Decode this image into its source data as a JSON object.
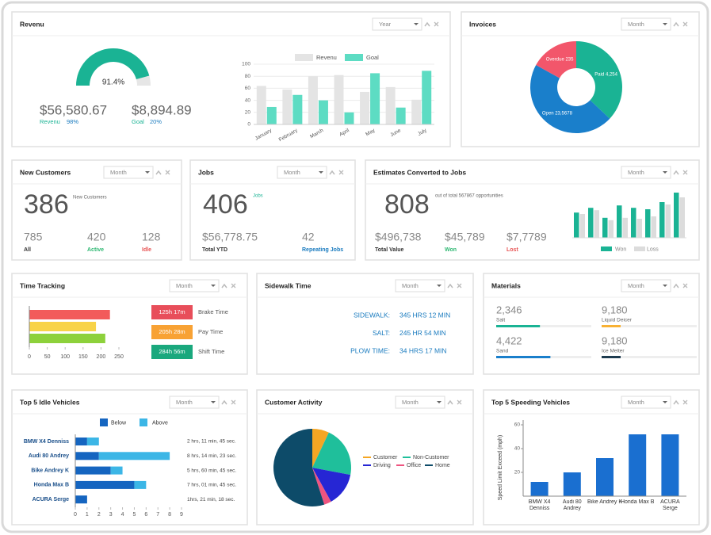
{
  "revenue": {
    "title": "Revenu",
    "period": "Year",
    "gauge": {
      "value": 91.4,
      "value_label": "91.4%",
      "range": [
        0,
        100
      ],
      "color": "#1ab394",
      "track_color": "#e6e6e6"
    },
    "total": "$56,580.67",
    "total_label": "Revenu",
    "total_change": "98%",
    "goal": "$8,894.89",
    "goal_label": "Goal",
    "goal_change": "20%",
    "chart": {
      "type": "bar",
      "categories": [
        "January",
        "February",
        "March",
        "April",
        "May",
        "June",
        "July"
      ],
      "series": [
        {
          "name": "Revenu",
          "color": "#e4e4e4",
          "values": [
            64,
            58,
            80,
            82,
            54,
            62,
            41
          ]
        },
        {
          "name": "Goal",
          "color": "#5ddcc3",
          "values": [
            29,
            49,
            40,
            20,
            85,
            28,
            89
          ]
        }
      ],
      "ylim": [
        0,
        100
      ],
      "yticks": [
        0,
        20,
        40,
        60,
        80,
        100
      ],
      "grid": true
    }
  },
  "invoices": {
    "title": "Invoices",
    "period": "Month",
    "chart": {
      "type": "donut",
      "categories": [
        "Paid 4,254",
        "Open 23,5678",
        "Overdue 235"
      ],
      "values": [
        37,
        46,
        17
      ],
      "colors": [
        "#1ab394",
        "#1a7fcb",
        "#f2566b"
      ]
    }
  },
  "new_customers": {
    "title": "New Customers",
    "period": "Month",
    "count": 386,
    "count_label": "New Customers",
    "stats": [
      {
        "value": 785,
        "label": "All",
        "color": "#333333"
      },
      {
        "value": 420,
        "label": "Active",
        "color": "#2eb872"
      },
      {
        "value": 128,
        "label": "Idle",
        "color": "#e85555"
      }
    ]
  },
  "jobs": {
    "title": "Jobs",
    "period": "Month",
    "count": 406,
    "count_label": "Jobs",
    "stats": [
      {
        "value": "$56,778.75",
        "label": "Total YTD",
        "color": "#333333"
      },
      {
        "value": 42,
        "label": "Repeating Jobs",
        "color": "#1a7bbf"
      }
    ]
  },
  "estimates": {
    "title": "Estimates Converted to Jobs",
    "period": "Month",
    "count": 808,
    "count_label": "out of total 567867 opportunities",
    "stats": [
      {
        "value": "$496,738",
        "label": "Total Value",
        "color": "#333333"
      },
      {
        "value": "$45,789",
        "label": "Won",
        "color": "#2eb872"
      },
      {
        "value": "$7,7789",
        "label": "Lost",
        "color": "#e85555"
      }
    ],
    "chart": {
      "type": "bar",
      "series": [
        {
          "name": "Won",
          "color": "#1ab394",
          "values": [
            53,
            63,
            42,
            68,
            63,
            60,
            75,
            95
          ]
        },
        {
          "name": "Loss",
          "color": "#dcdcdc",
          "values": [
            50,
            58,
            37,
            42,
            40,
            45,
            70,
            85
          ]
        }
      ],
      "ylim": [
        0,
        100
      ]
    }
  },
  "time_tracking": {
    "title": "Time Tracking",
    "period": "Month",
    "chart": {
      "type": "hbar",
      "values": [
        225,
        186,
        212
      ],
      "colors": [
        "#f25b5b",
        "#f8d347",
        "#8dd13b"
      ],
      "xlim": [
        0,
        250
      ],
      "xticks": [
        0,
        50,
        100,
        150,
        200,
        250
      ]
    },
    "badges": [
      {
        "value": "125h 17m",
        "label": "Brake Time",
        "color": "#e84e5a"
      },
      {
        "value": "205h 28m",
        "label": "Pay Time",
        "color": "#f8a234"
      },
      {
        "value": "284h 56m",
        "label": "Shift Time",
        "color": "#1aa87d"
      }
    ]
  },
  "sidewalk": {
    "title": "Sidewalk Time",
    "period": "Month",
    "rows": [
      {
        "label": "SIDEWALK:",
        "value": "345 HRS 12 MIN"
      },
      {
        "label": "SALT:",
        "value": "245 HR 54 MIN"
      },
      {
        "label": "PLOW TIME:",
        "value": "34 HRS 17 MIN"
      }
    ]
  },
  "materials": {
    "title": "Materials",
    "period": "Month",
    "xlim": [
      0,
      100
    ],
    "items": [
      {
        "value": "2,346",
        "label": "Salt",
        "progress": 46,
        "color": "#1ab394"
      },
      {
        "value": "9,180",
        "label": "Liquid Deicer",
        "progress": 20,
        "color": "#f8b133"
      },
      {
        "value": "4,422",
        "label": "Sand",
        "progress": 57,
        "color": "#1a7fcb"
      },
      {
        "value": "9,180",
        "label": "Ice Melter",
        "progress": 20,
        "color": "#1d3b4f"
      }
    ]
  },
  "idle_vehicles": {
    "title": "Top 5 Idle Vehicles",
    "period": "Month",
    "chart": {
      "type": "stacked-hbar",
      "categories": [
        "BMW X4 Denniss",
        "Audi 80 Andrey",
        "Bike Andrey K",
        "Honda Max B",
        "ACURA Serge"
      ],
      "series": [
        {
          "name": "Below",
          "color": "#1565c0",
          "values": [
            1,
            2,
            3,
            5,
            1
          ]
        },
        {
          "name": "Above",
          "color": "#3cb6e6",
          "values": [
            1,
            6,
            1,
            1,
            0
          ]
        }
      ],
      "xlim": [
        0,
        9
      ],
      "xticks": [
        0,
        1,
        2,
        3,
        4,
        5,
        6,
        7,
        8,
        9
      ]
    },
    "durations": [
      "2 hrs, 11 min, 45 sec.",
      "8 hrs, 14 min, 23 sec.",
      "5 hrs, 60 min, 45 sec.",
      "7 hrs, 01 min, 45 sec.",
      "1hrs, 21 min, 18 sec."
    ]
  },
  "customer_activity": {
    "title": "Customer Activity",
    "period": "Month",
    "chart": {
      "type": "pie",
      "categories": [
        "Customer",
        "Non-Customer",
        "Driving",
        "Office",
        "Home"
      ],
      "values": [
        7,
        21,
        14,
        3,
        55
      ],
      "colors": [
        "#f5a623",
        "#1fbf9b",
        "#2626d4",
        "#ee5480",
        "#0d4b69"
      ]
    }
  },
  "speeding_vehicles": {
    "title": "Top 5 Speeding Vehicles",
    "period": "Month",
    "chart": {
      "type": "bar",
      "categories": [
        "BMW X4 Denniss",
        "Audi 80 Andrey",
        "Bike Andrey K",
        "Honda Max B",
        "ACURA Serge"
      ],
      "values": [
        12,
        20,
        32,
        52,
        52
      ],
      "color": "#1a6fd0",
      "ylim": [
        0,
        60
      ],
      "yticks": [
        20,
        40,
        60
      ],
      "ylabel": "Speed Limit Exceed (mph)"
    }
  }
}
